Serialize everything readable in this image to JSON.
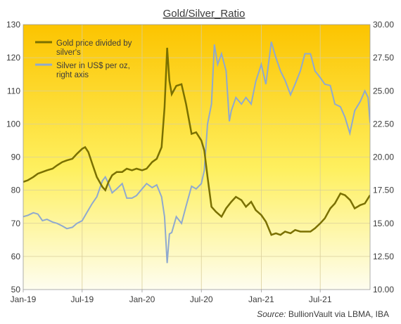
{
  "chart_data": {
    "type": "line",
    "title": "Gold/Silver_Ratio",
    "source_prefix": "Source:",
    "source_text": " BullionVault via LBMA, IBA",
    "grid": true,
    "legend_position": "top-left",
    "x_axis": {
      "scale": "time",
      "start": "2019-01-01",
      "end": "2021-12-01",
      "ticks": [
        {
          "label": "Jan-19",
          "date": "2019-01-01"
        },
        {
          "label": "Jul-19",
          "date": "2019-07-01"
        },
        {
          "label": "Jan-20",
          "date": "2020-01-01"
        },
        {
          "label": "Jul-20",
          "date": "2020-07-01"
        },
        {
          "label": "Jan-21",
          "date": "2021-01-01"
        },
        {
          "label": "Jul-21",
          "date": "2021-07-01"
        }
      ]
    },
    "y_left": {
      "min": 50,
      "max": 130,
      "step": 10,
      "tick_labels": [
        "50",
        "60",
        "70",
        "80",
        "90",
        "100",
        "110",
        "120",
        "130"
      ]
    },
    "y_right": {
      "min": 10,
      "max": 30,
      "step": 2.5,
      "tick_labels": [
        "10.00",
        "12.50",
        "15.00",
        "17.50",
        "20.00",
        "22.50",
        "25.00",
        "27.50",
        "30.00"
      ]
    },
    "series": [
      {
        "name": "Gold price divided by silver's",
        "axis": "left",
        "color": "#7a7000",
        "points": [
          [
            "2019-01-01",
            82.5
          ],
          [
            "2019-01-15",
            83.0
          ],
          [
            "2019-02-01",
            84.0
          ],
          [
            "2019-02-15",
            85.0
          ],
          [
            "2019-03-01",
            85.5
          ],
          [
            "2019-03-15",
            86.0
          ],
          [
            "2019-04-01",
            86.5
          ],
          [
            "2019-04-15",
            87.5
          ],
          [
            "2019-05-01",
            88.5
          ],
          [
            "2019-05-15",
            89.0
          ],
          [
            "2019-06-01",
            89.5
          ],
          [
            "2019-06-15",
            91.0
          ],
          [
            "2019-07-01",
            92.5
          ],
          [
            "2019-07-10",
            93.0
          ],
          [
            "2019-07-20",
            91.5
          ],
          [
            "2019-08-01",
            88.0
          ],
          [
            "2019-08-15",
            84.0
          ],
          [
            "2019-09-01",
            81.0
          ],
          [
            "2019-09-10",
            80.0
          ],
          [
            "2019-09-20",
            82.5
          ],
          [
            "2019-10-01",
            84.5
          ],
          [
            "2019-10-15",
            85.5
          ],
          [
            "2019-11-01",
            85.5
          ],
          [
            "2019-11-15",
            86.5
          ],
          [
            "2019-12-01",
            86.0
          ],
          [
            "2019-12-15",
            86.5
          ],
          [
            "2020-01-01",
            86.0
          ],
          [
            "2020-01-15",
            86.5
          ],
          [
            "2020-02-01",
            88.5
          ],
          [
            "2020-02-15",
            89.5
          ],
          [
            "2020-03-01",
            93.0
          ],
          [
            "2020-03-10",
            105.0
          ],
          [
            "2020-03-18",
            123.0
          ],
          [
            "2020-03-25",
            113.0
          ],
          [
            "2020-04-01",
            109.0
          ],
          [
            "2020-04-15",
            111.5
          ],
          [
            "2020-05-01",
            112.0
          ],
          [
            "2020-05-15",
            106.0
          ],
          [
            "2020-06-01",
            97.0
          ],
          [
            "2020-06-15",
            97.5
          ],
          [
            "2020-07-01",
            95.0
          ],
          [
            "2020-07-10",
            92.0
          ],
          [
            "2020-07-20",
            84.0
          ],
          [
            "2020-08-01",
            75.0
          ],
          [
            "2020-08-15",
            73.5
          ],
          [
            "2020-09-01",
            72.0
          ],
          [
            "2020-09-15",
            74.5
          ],
          [
            "2020-10-01",
            76.5
          ],
          [
            "2020-10-15",
            78.0
          ],
          [
            "2020-11-01",
            77.0
          ],
          [
            "2020-11-15",
            75.0
          ],
          [
            "2020-12-01",
            76.5
          ],
          [
            "2020-12-15",
            74.0
          ],
          [
            "2021-01-01",
            72.5
          ],
          [
            "2021-01-15",
            70.5
          ],
          [
            "2021-02-01",
            66.5
          ],
          [
            "2021-02-15",
            67.0
          ],
          [
            "2021-03-01",
            66.5
          ],
          [
            "2021-03-15",
            67.5
          ],
          [
            "2021-04-01",
            67.0
          ],
          [
            "2021-04-15",
            68.0
          ],
          [
            "2021-05-01",
            67.5
          ],
          [
            "2021-05-15",
            67.5
          ],
          [
            "2021-06-01",
            67.5
          ],
          [
            "2021-06-15",
            68.5
          ],
          [
            "2021-07-01",
            70.0
          ],
          [
            "2021-07-15",
            71.5
          ],
          [
            "2021-08-01",
            74.5
          ],
          [
            "2021-08-15",
            76.0
          ],
          [
            "2021-09-01",
            79.0
          ],
          [
            "2021-09-15",
            78.5
          ],
          [
            "2021-10-01",
            77.0
          ],
          [
            "2021-10-15",
            74.5
          ],
          [
            "2021-11-01",
            75.5
          ],
          [
            "2021-11-15",
            76.0
          ],
          [
            "2021-12-01",
            78.5
          ]
        ]
      },
      {
        "name": "Silver in US$ per oz, right axis",
        "axis": "right",
        "color": "#8fa9cf",
        "points": [
          [
            "2019-01-01",
            15.5
          ],
          [
            "2019-01-15",
            15.6
          ],
          [
            "2019-02-01",
            15.8
          ],
          [
            "2019-02-15",
            15.7
          ],
          [
            "2019-03-01",
            15.2
          ],
          [
            "2019-03-15",
            15.3
          ],
          [
            "2019-04-01",
            15.1
          ],
          [
            "2019-04-15",
            15.0
          ],
          [
            "2019-05-01",
            14.8
          ],
          [
            "2019-05-15",
            14.6
          ],
          [
            "2019-06-01",
            14.7
          ],
          [
            "2019-06-15",
            15.0
          ],
          [
            "2019-07-01",
            15.2
          ],
          [
            "2019-07-15",
            15.8
          ],
          [
            "2019-08-01",
            16.5
          ],
          [
            "2019-08-15",
            17.0
          ],
          [
            "2019-09-01",
            18.2
          ],
          [
            "2019-09-10",
            18.5
          ],
          [
            "2019-09-20",
            18.0
          ],
          [
            "2019-10-01",
            17.3
          ],
          [
            "2019-10-15",
            17.6
          ],
          [
            "2019-11-01",
            18.0
          ],
          [
            "2019-11-15",
            16.9
          ],
          [
            "2019-12-01",
            16.9
          ],
          [
            "2019-12-15",
            17.1
          ],
          [
            "2020-01-01",
            17.6
          ],
          [
            "2020-01-15",
            18.0
          ],
          [
            "2020-02-01",
            17.7
          ],
          [
            "2020-02-15",
            17.9
          ],
          [
            "2020-03-01",
            17.0
          ],
          [
            "2020-03-10",
            15.5
          ],
          [
            "2020-03-18",
            12.0
          ],
          [
            "2020-03-25",
            14.2
          ],
          [
            "2020-04-01",
            14.3
          ],
          [
            "2020-04-15",
            15.5
          ],
          [
            "2020-05-01",
            15.0
          ],
          [
            "2020-05-15",
            16.3
          ],
          [
            "2020-06-01",
            17.8
          ],
          [
            "2020-06-15",
            17.6
          ],
          [
            "2020-07-01",
            18.0
          ],
          [
            "2020-07-10",
            19.0
          ],
          [
            "2020-07-20",
            22.5
          ],
          [
            "2020-08-01",
            24.0
          ],
          [
            "2020-08-10",
            28.5
          ],
          [
            "2020-08-20",
            27.0
          ],
          [
            "2020-09-01",
            27.8
          ],
          [
            "2020-09-15",
            26.5
          ],
          [
            "2020-09-25",
            22.7
          ],
          [
            "2020-10-01",
            23.5
          ],
          [
            "2020-10-15",
            24.5
          ],
          [
            "2020-11-01",
            24.0
          ],
          [
            "2020-11-15",
            24.5
          ],
          [
            "2020-12-01",
            24.0
          ],
          [
            "2020-12-15",
            25.7
          ],
          [
            "2021-01-01",
            27.0
          ],
          [
            "2021-01-15",
            25.5
          ],
          [
            "2021-02-01",
            28.7
          ],
          [
            "2021-02-15",
            27.5
          ],
          [
            "2021-03-01",
            26.5
          ],
          [
            "2021-03-15",
            25.8
          ],
          [
            "2021-04-01",
            24.7
          ],
          [
            "2021-04-15",
            25.5
          ],
          [
            "2021-05-01",
            26.5
          ],
          [
            "2021-05-15",
            27.8
          ],
          [
            "2021-06-01",
            27.8
          ],
          [
            "2021-06-15",
            26.5
          ],
          [
            "2021-07-01",
            26.0
          ],
          [
            "2021-07-15",
            25.5
          ],
          [
            "2021-08-01",
            25.4
          ],
          [
            "2021-08-15",
            24.0
          ],
          [
            "2021-09-01",
            23.8
          ],
          [
            "2021-09-15",
            23.0
          ],
          [
            "2021-09-30",
            21.8
          ],
          [
            "2021-10-15",
            23.5
          ],
          [
            "2021-11-01",
            24.2
          ],
          [
            "2021-11-15",
            25.0
          ],
          [
            "2021-11-25",
            24.5
          ],
          [
            "2021-12-01",
            22.6
          ]
        ]
      }
    ],
    "legend": [
      {
        "label_lines": [
          "Gold price divided by",
          "silver's"
        ],
        "color": "#7a7000"
      },
      {
        "label_lines": [
          "Silver in US$ per oz,",
          "right axis"
        ],
        "color": "#8fa9cf"
      }
    ]
  }
}
